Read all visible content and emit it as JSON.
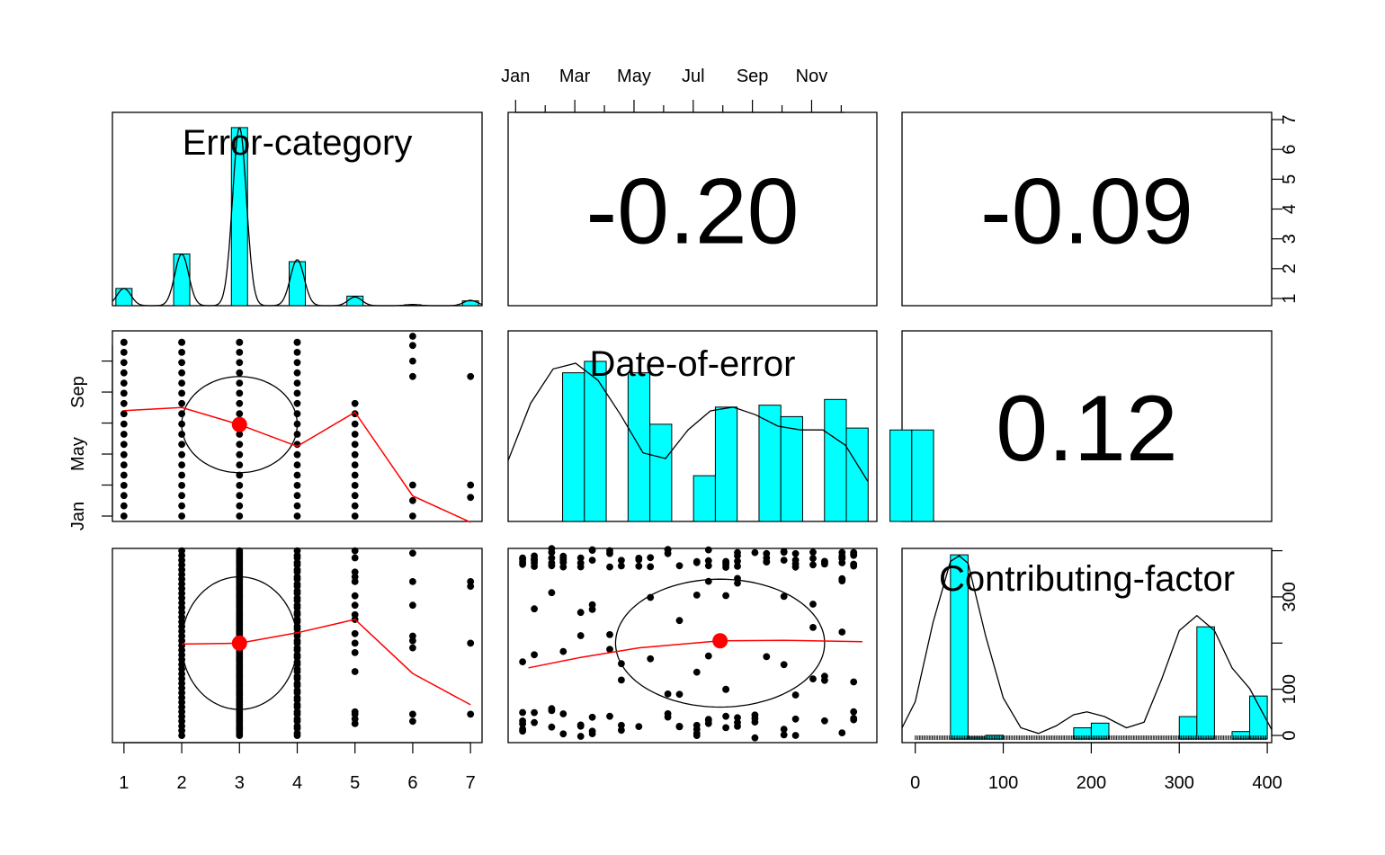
{
  "chart_data": {
    "type": "scatter-matrix",
    "variables": [
      "Error-category",
      "Date-of-error",
      "Contributing-factor"
    ],
    "correlations": [
      {
        "row": 0,
        "col": 1,
        "label": "-0.20"
      },
      {
        "row": 0,
        "col": 2,
        "label": "-0.09"
      },
      {
        "row": 1,
        "col": 2,
        "label": "0.12"
      }
    ],
    "axes": {
      "error_category": {
        "range": [
          0.8,
          7.2
        ],
        "ticks": [
          "1",
          "2",
          "3",
          "4",
          "5",
          "6",
          "7"
        ]
      },
      "date_of_error": {
        "range": [
          1,
          13
        ],
        "top_ticks": [
          "Jan",
          "Mar",
          "May",
          "Jul",
          "Sep",
          "Nov"
        ],
        "top_tick_values": [
          1.1,
          3.1,
          5.1,
          7.1,
          9.1,
          11.1
        ],
        "left_ticks": [
          "Jan",
          "May",
          "Sep"
        ],
        "left_tick_values": [
          1.0,
          5.0,
          9.0
        ]
      },
      "contributing_factor": {
        "range": [
          -15,
          405
        ],
        "bottom_ticks": [
          "0",
          "100",
          "200",
          "300",
          "400"
        ],
        "bottom_tick_values": [
          0,
          100,
          200,
          300,
          400
        ],
        "right_ticks": [
          "0",
          "100",
          "300"
        ],
        "right_tick_values": [
          0,
          100,
          300
        ]
      },
      "error_category_right": {
        "ticks": [
          "1",
          "2",
          "3",
          "4",
          "5",
          "6",
          "7"
        ]
      }
    },
    "histograms": {
      "error_category": {
        "bars": [
          [
            1,
            0.09
          ],
          [
            2,
            0.27
          ],
          [
            3,
            0.93
          ],
          [
            4,
            0.23
          ],
          [
            5,
            0.05
          ],
          [
            6,
            0.005
          ],
          [
            7,
            0.025
          ]
        ],
        "density_peaks": [
          [
            1,
            0.09
          ],
          [
            2,
            0.27
          ],
          [
            3,
            0.93
          ],
          [
            4,
            0.24
          ],
          [
            5,
            0.045
          ],
          [
            6,
            0.006
          ],
          [
            7,
            0.028
          ]
        ]
      },
      "date_of_error": {
        "bars": [
          [
            1,
            1.5,
            0.78
          ],
          [
            1.5,
            2,
            0.84
          ],
          [
            2.5,
            3,
            0.78
          ],
          [
            3,
            3.5,
            0.51
          ],
          [
            4,
            4.5,
            0.24
          ],
          [
            4.5,
            5,
            0.6
          ],
          [
            5.5,
            6,
            0.61
          ],
          [
            6,
            6.5,
            0.55
          ],
          [
            7,
            7.5,
            0.64
          ],
          [
            7.5,
            8,
            0.49
          ],
          [
            8.5,
            9,
            0.48
          ],
          [
            9,
            9.5,
            0.48
          ]
        ],
        "density": [
          [
            0,
            0.32
          ],
          [
            0.5,
            0.62
          ],
          [
            1,
            0.8
          ],
          [
            1.5,
            0.83
          ],
          [
            2,
            0.74
          ],
          [
            2.5,
            0.56
          ],
          [
            3,
            0.36
          ],
          [
            3.5,
            0.33
          ],
          [
            4,
            0.48
          ],
          [
            4.5,
            0.58
          ],
          [
            5,
            0.6
          ],
          [
            5.5,
            0.56
          ],
          [
            6,
            0.5
          ],
          [
            6.5,
            0.48
          ],
          [
            7,
            0.48
          ],
          [
            7.5,
            0.4
          ],
          [
            8,
            0.21
          ]
        ]
      },
      "contributing_factor": {
        "bars": [
          [
            40,
            60,
            0.985
          ],
          [
            60,
            80,
            0.01
          ],
          [
            80,
            100,
            0.02
          ],
          [
            180,
            200,
            0.06
          ],
          [
            200,
            220,
            0.085
          ],
          [
            300,
            320,
            0.12
          ],
          [
            320,
            340,
            0.6
          ],
          [
            360,
            380,
            0.04
          ],
          [
            380,
            400,
            0.23
          ]
        ],
        "density": [
          [
            -15,
            0.06
          ],
          [
            0,
            0.2
          ],
          [
            20,
            0.62
          ],
          [
            40,
            0.95
          ],
          [
            50,
            0.98
          ],
          [
            60,
            0.94
          ],
          [
            80,
            0.55
          ],
          [
            100,
            0.22
          ],
          [
            120,
            0.06
          ],
          [
            140,
            0.03
          ],
          [
            160,
            0.07
          ],
          [
            180,
            0.13
          ],
          [
            195,
            0.145
          ],
          [
            215,
            0.12
          ],
          [
            240,
            0.06
          ],
          [
            260,
            0.09
          ],
          [
            280,
            0.32
          ],
          [
            300,
            0.58
          ],
          [
            320,
            0.66
          ],
          [
            340,
            0.58
          ],
          [
            360,
            0.38
          ],
          [
            380,
            0.27
          ],
          [
            405,
            0.05
          ]
        ]
      }
    },
    "scatter": {
      "category_vs_date": {
        "ellipse": {
          "center": [
            3,
            6.9
          ],
          "r_x": 1,
          "r_y": 3.1
        },
        "center_point": [
          3,
          6.9
        ],
        "loess": [
          [
            1,
            7.8
          ],
          [
            2,
            8.0
          ],
          [
            3,
            6.9
          ],
          [
            4,
            5.5
          ],
          [
            5,
            7.7
          ],
          [
            6,
            2.3
          ],
          [
            7,
            0.6
          ]
        ]
      },
      "category_vs_factor": {
        "ellipse": {
          "center": [
            3,
            200
          ],
          "r_x": 1,
          "r_y": 140
        },
        "center_point": [
          3,
          200
        ],
        "loess": [
          [
            2,
            198
          ],
          [
            3,
            200
          ],
          [
            4,
            222
          ],
          [
            5,
            250
          ],
          [
            6,
            136
          ],
          [
            7,
            70
          ]
        ]
      },
      "date_vs_factor": {
        "ellipse": {
          "center": [
            6.8,
            200
          ],
          "r_x": 3.6,
          "r_y": 135
        },
        "center_point": [
          6.8,
          205
        ],
        "loess": [
          [
            0.2,
            148
          ],
          [
            2,
            170
          ],
          [
            4,
            190
          ],
          [
            6.8,
            205
          ],
          [
            9,
            206
          ],
          [
            11.7,
            203
          ]
        ]
      }
    },
    "colors": {
      "bar_fill": "#00FFFF",
      "loess": "#FF0000",
      "points": "#000000"
    }
  }
}
